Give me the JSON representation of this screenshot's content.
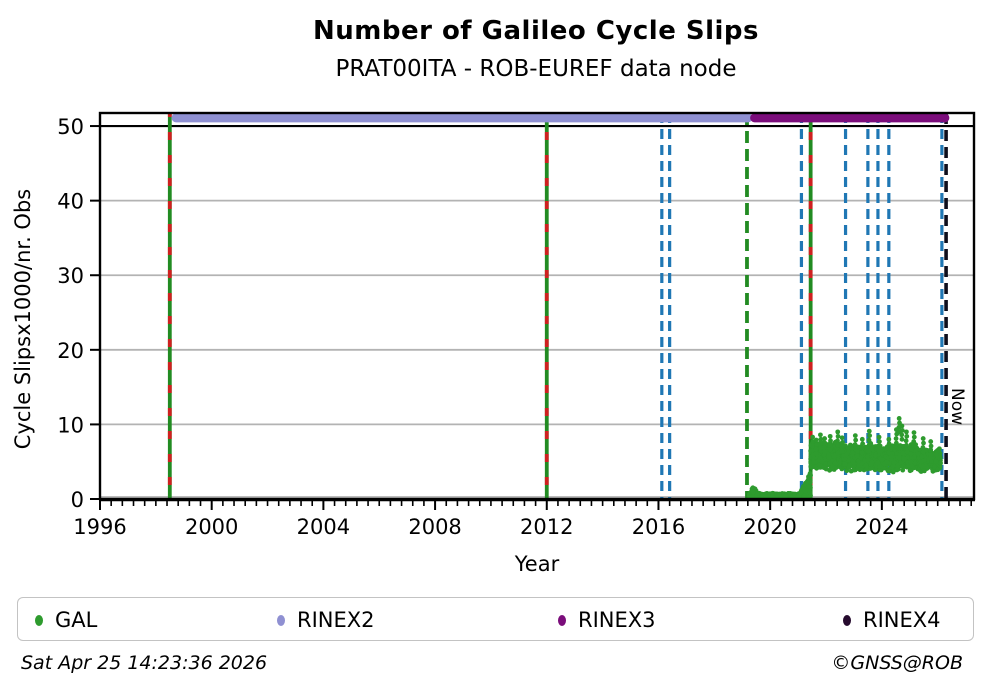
{
  "title": "Number of Galileo Cycle Slips",
  "subtitle": "PRAT00ITA - ROB-EUREF data node",
  "axes": {
    "xlabel": "Year",
    "ylabel": "Cycle Slipsx1000/nr. Obs",
    "x_ticks": [
      1996,
      2000,
      2004,
      2008,
      2012,
      2016,
      2020,
      2024
    ],
    "y_ticks": [
      0,
      10,
      20,
      30,
      40,
      50
    ],
    "xlim": [
      1996.0,
      2027.3
    ],
    "ylim": [
      0,
      51.75
    ],
    "x_minor_step": 0.4,
    "grid": "horizontal-gray",
    "top_rule_y": 50
  },
  "chart_data": {
    "type": "scatter",
    "title": "Number of Galileo Cycle Slips",
    "subtitle": "PRAT00ITA - ROB-EUREF data node",
    "legend_position": "bottom",
    "rinex_bars": [
      {
        "name": "RINEX2",
        "color": "#8f90d2",
        "x0": 1998.58,
        "x1": 2019.35,
        "y": 51.1
      },
      {
        "name": "RINEX3",
        "color": "#7b0d7b",
        "x0": 2019.3,
        "x1": 2026.4,
        "y": 51.1
      }
    ],
    "event_lines": [
      {
        "x": 1998.5,
        "style": "green_red"
      },
      {
        "x": 2012.0,
        "style": "green_red"
      },
      {
        "x": 2016.12,
        "style": "blue_dashed"
      },
      {
        "x": 2016.4,
        "style": "blue_dashed"
      },
      {
        "x": 2019.17,
        "style": "green_dashed"
      },
      {
        "x": 2021.12,
        "style": "blue_dashed"
      },
      {
        "x": 2021.45,
        "style": "green_red"
      },
      {
        "x": 2022.7,
        "style": "blue_dashed"
      },
      {
        "x": 2023.5,
        "style": "blue_dashed"
      },
      {
        "x": 2023.86,
        "style": "blue_dashed"
      },
      {
        "x": 2024.25,
        "style": "blue_dashed"
      },
      {
        "x": 2026.15,
        "style": "blue_dashed"
      }
    ],
    "now_line": {
      "x": 2026.3,
      "label": "Now",
      "style": "dark_dashed"
    },
    "gal_scatter": {
      "color": "#2e9b2e",
      "point_radius": 2.4,
      "bands": [
        {
          "x0": 2019.25,
          "x1": 2019.45,
          "y0": 0.1,
          "y1": 1.0,
          "n": 70
        },
        {
          "x0": 2019.33,
          "x1": 2019.5,
          "y0": 0.8,
          "y1": 1.55,
          "n": 14
        },
        {
          "x0": 2019.45,
          "x1": 2021.05,
          "y0": 0.05,
          "y1": 0.8,
          "n": 430
        },
        {
          "x0": 2021.0,
          "x1": 2021.45,
          "y0": 0.3,
          "y1": 3.6,
          "n": 120,
          "ramp": true
        },
        {
          "x0": 2021.45,
          "x1": 2022.6,
          "y0": 3.8,
          "y1": 7.9,
          "n": 540
        },
        {
          "x0": 2022.6,
          "x1": 2025.3,
          "y0": 3.6,
          "y1": 7.5,
          "n": 1080
        },
        {
          "x0": 2025.3,
          "x1": 2026.1,
          "y0": 3.5,
          "y1": 6.8,
          "n": 330
        }
      ],
      "spikes": [
        {
          "x": 2021.52,
          "y": 8.3
        },
        {
          "x": 2021.65,
          "y": 7.9
        },
        {
          "x": 2021.8,
          "y": 8.6
        },
        {
          "x": 2021.95,
          "y": 8.1
        },
        {
          "x": 2022.15,
          "y": 8.4
        },
        {
          "x": 2022.42,
          "y": 9.0
        },
        {
          "x": 2022.58,
          "y": 8.2
        },
        {
          "x": 2023.05,
          "y": 8.5
        },
        {
          "x": 2023.3,
          "y": 8.0
        },
        {
          "x": 2023.55,
          "y": 9.1
        },
        {
          "x": 2023.9,
          "y": 8.3
        },
        {
          "x": 2024.25,
          "y": 8.0
        },
        {
          "x": 2024.52,
          "y": 9.3
        },
        {
          "x": 2024.62,
          "y": 10.8
        },
        {
          "x": 2024.72,
          "y": 9.8
        },
        {
          "x": 2024.88,
          "y": 9.0
        },
        {
          "x": 2025.15,
          "y": 8.9
        },
        {
          "x": 2025.48,
          "y": 8.1
        },
        {
          "x": 2025.75,
          "y": 7.7
        },
        {
          "x": 2019.38,
          "y": 1.5
        }
      ]
    },
    "line_colors": {
      "blue_dashed": "#1f77b4",
      "green_dashed": "#228b22",
      "green_red_green": "#228b22",
      "green_red_red": "#cf2020",
      "dark_dashed": "#0e0e1c",
      "grid_gray": "#b3b3b3",
      "rule_black": "#000000"
    }
  },
  "legend": {
    "items": [
      {
        "label": "GAL",
        "color": "#2e9b2e"
      },
      {
        "label": "RINEX2",
        "color": "#8f90d2"
      },
      {
        "label": "RINEX3",
        "color": "#7b0d7b"
      },
      {
        "label": "RINEX4",
        "color": "#260b2e"
      }
    ]
  },
  "footer": {
    "timestamp": "Sat Apr 25 14:23:36 2026",
    "copyright": "©GNSS@ROB"
  }
}
